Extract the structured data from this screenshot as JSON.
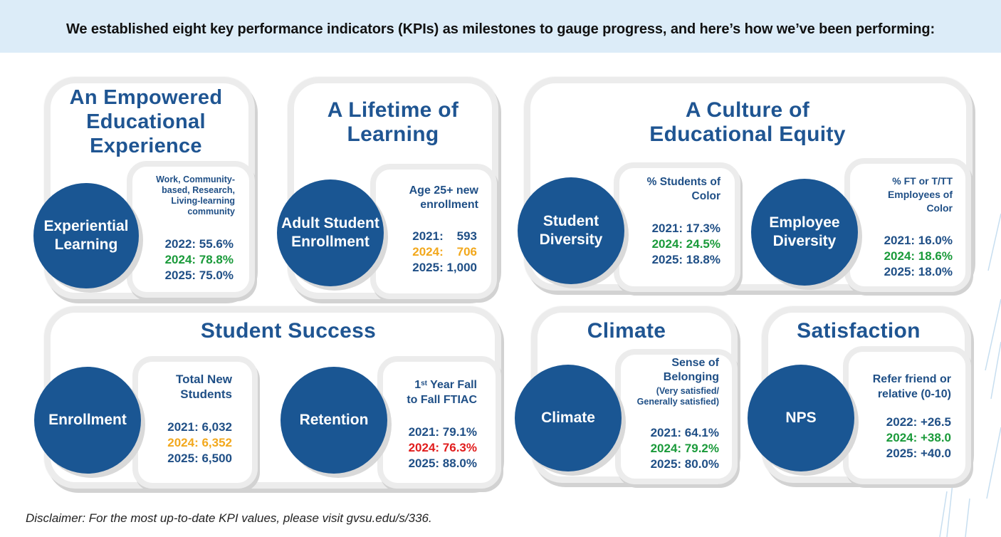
{
  "header": {
    "text": "We established eight key performance indicators (KPIs) as milestones to gauge progress, and here’s how we’ve been performing:"
  },
  "colors": {
    "banner": "#dcecf8",
    "title_blue": "#1f5592",
    "circle_blue": "#1a5693",
    "green": "#1a9a3a",
    "orange": "#f2a81d",
    "red": "#e11d1d"
  },
  "groups": {
    "empowered": {
      "title": "An Empowered Educational Experience",
      "kpi": {
        "name": "Experiential Learning",
        "description": "Work, Community-based, Research, Living-learning community",
        "values": [
          "2022: 55.6%",
          "2024: 78.8%",
          "2025: 75.0%"
        ]
      }
    },
    "lifetime": {
      "title": "A Lifetime of Learning",
      "kpi": {
        "name": "Adult Student Enrollment",
        "description": "Age 25+ new enrollment",
        "values": [
          "2021:    593",
          "2024:    706",
          "2025: 1,000"
        ]
      }
    },
    "equity": {
      "title": "A Culture of Educational Equity",
      "kpis": [
        {
          "name": "Student Diversity",
          "description": "% Students of Color",
          "values": [
            "2021: 17.3%",
            "2024: 24.5%",
            "2025: 18.8%"
          ]
        },
        {
          "name": "Employee Diversity",
          "description": "% FT or T/TT Employees of Color",
          "values": [
            "2021: 16.0%",
            "2024: 18.6%",
            "2025: 18.0%"
          ]
        }
      ]
    },
    "success": {
      "title": "Student Success",
      "kpis": [
        {
          "name": "Enrollment",
          "description": "Total New Students",
          "values": [
            "2021: 6,032",
            "2024: 6,352",
            "2025: 6,500"
          ]
        },
        {
          "name": "Retention",
          "description_sup_prefix": "1",
          "description_sup": "st",
          "description_rest": " Year Fall",
          "description_line2": "to Fall FTIAC",
          "values": [
            "2021: 79.1%",
            "2024: 76.3%",
            "2025: 88.0%"
          ]
        }
      ]
    },
    "climate": {
      "title": "Climate",
      "kpi": {
        "name": "Climate",
        "description": "Sense of Belonging",
        "description_small": "(Very satisfied/ Generally satisfied)",
        "values": [
          "2021: 64.1%",
          "2024: 79.2%",
          "2025: 80.0%"
        ]
      }
    },
    "satisfaction": {
      "title": "Satisfaction",
      "kpi": {
        "name": "NPS",
        "description": "Refer friend or relative (0-10)",
        "values": [
          "2022: +26.5",
          "2024: +38.0",
          "2025: +40.0"
        ]
      }
    }
  },
  "footer": {
    "disclaimer": "Disclaimer: For the most up-to-date KPI values, please visit gvsu.edu/s/336."
  }
}
